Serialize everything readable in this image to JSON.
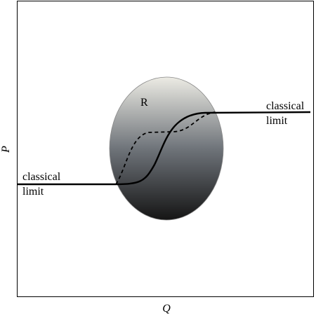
{
  "axes": {
    "x_label": "Q",
    "y_label": "P"
  },
  "region": {
    "label": "R"
  },
  "annotations": [
    {
      "lines": [
        "classical",
        "limit"
      ]
    },
    {
      "lines": [
        "classical",
        "limit"
      ]
    }
  ]
}
